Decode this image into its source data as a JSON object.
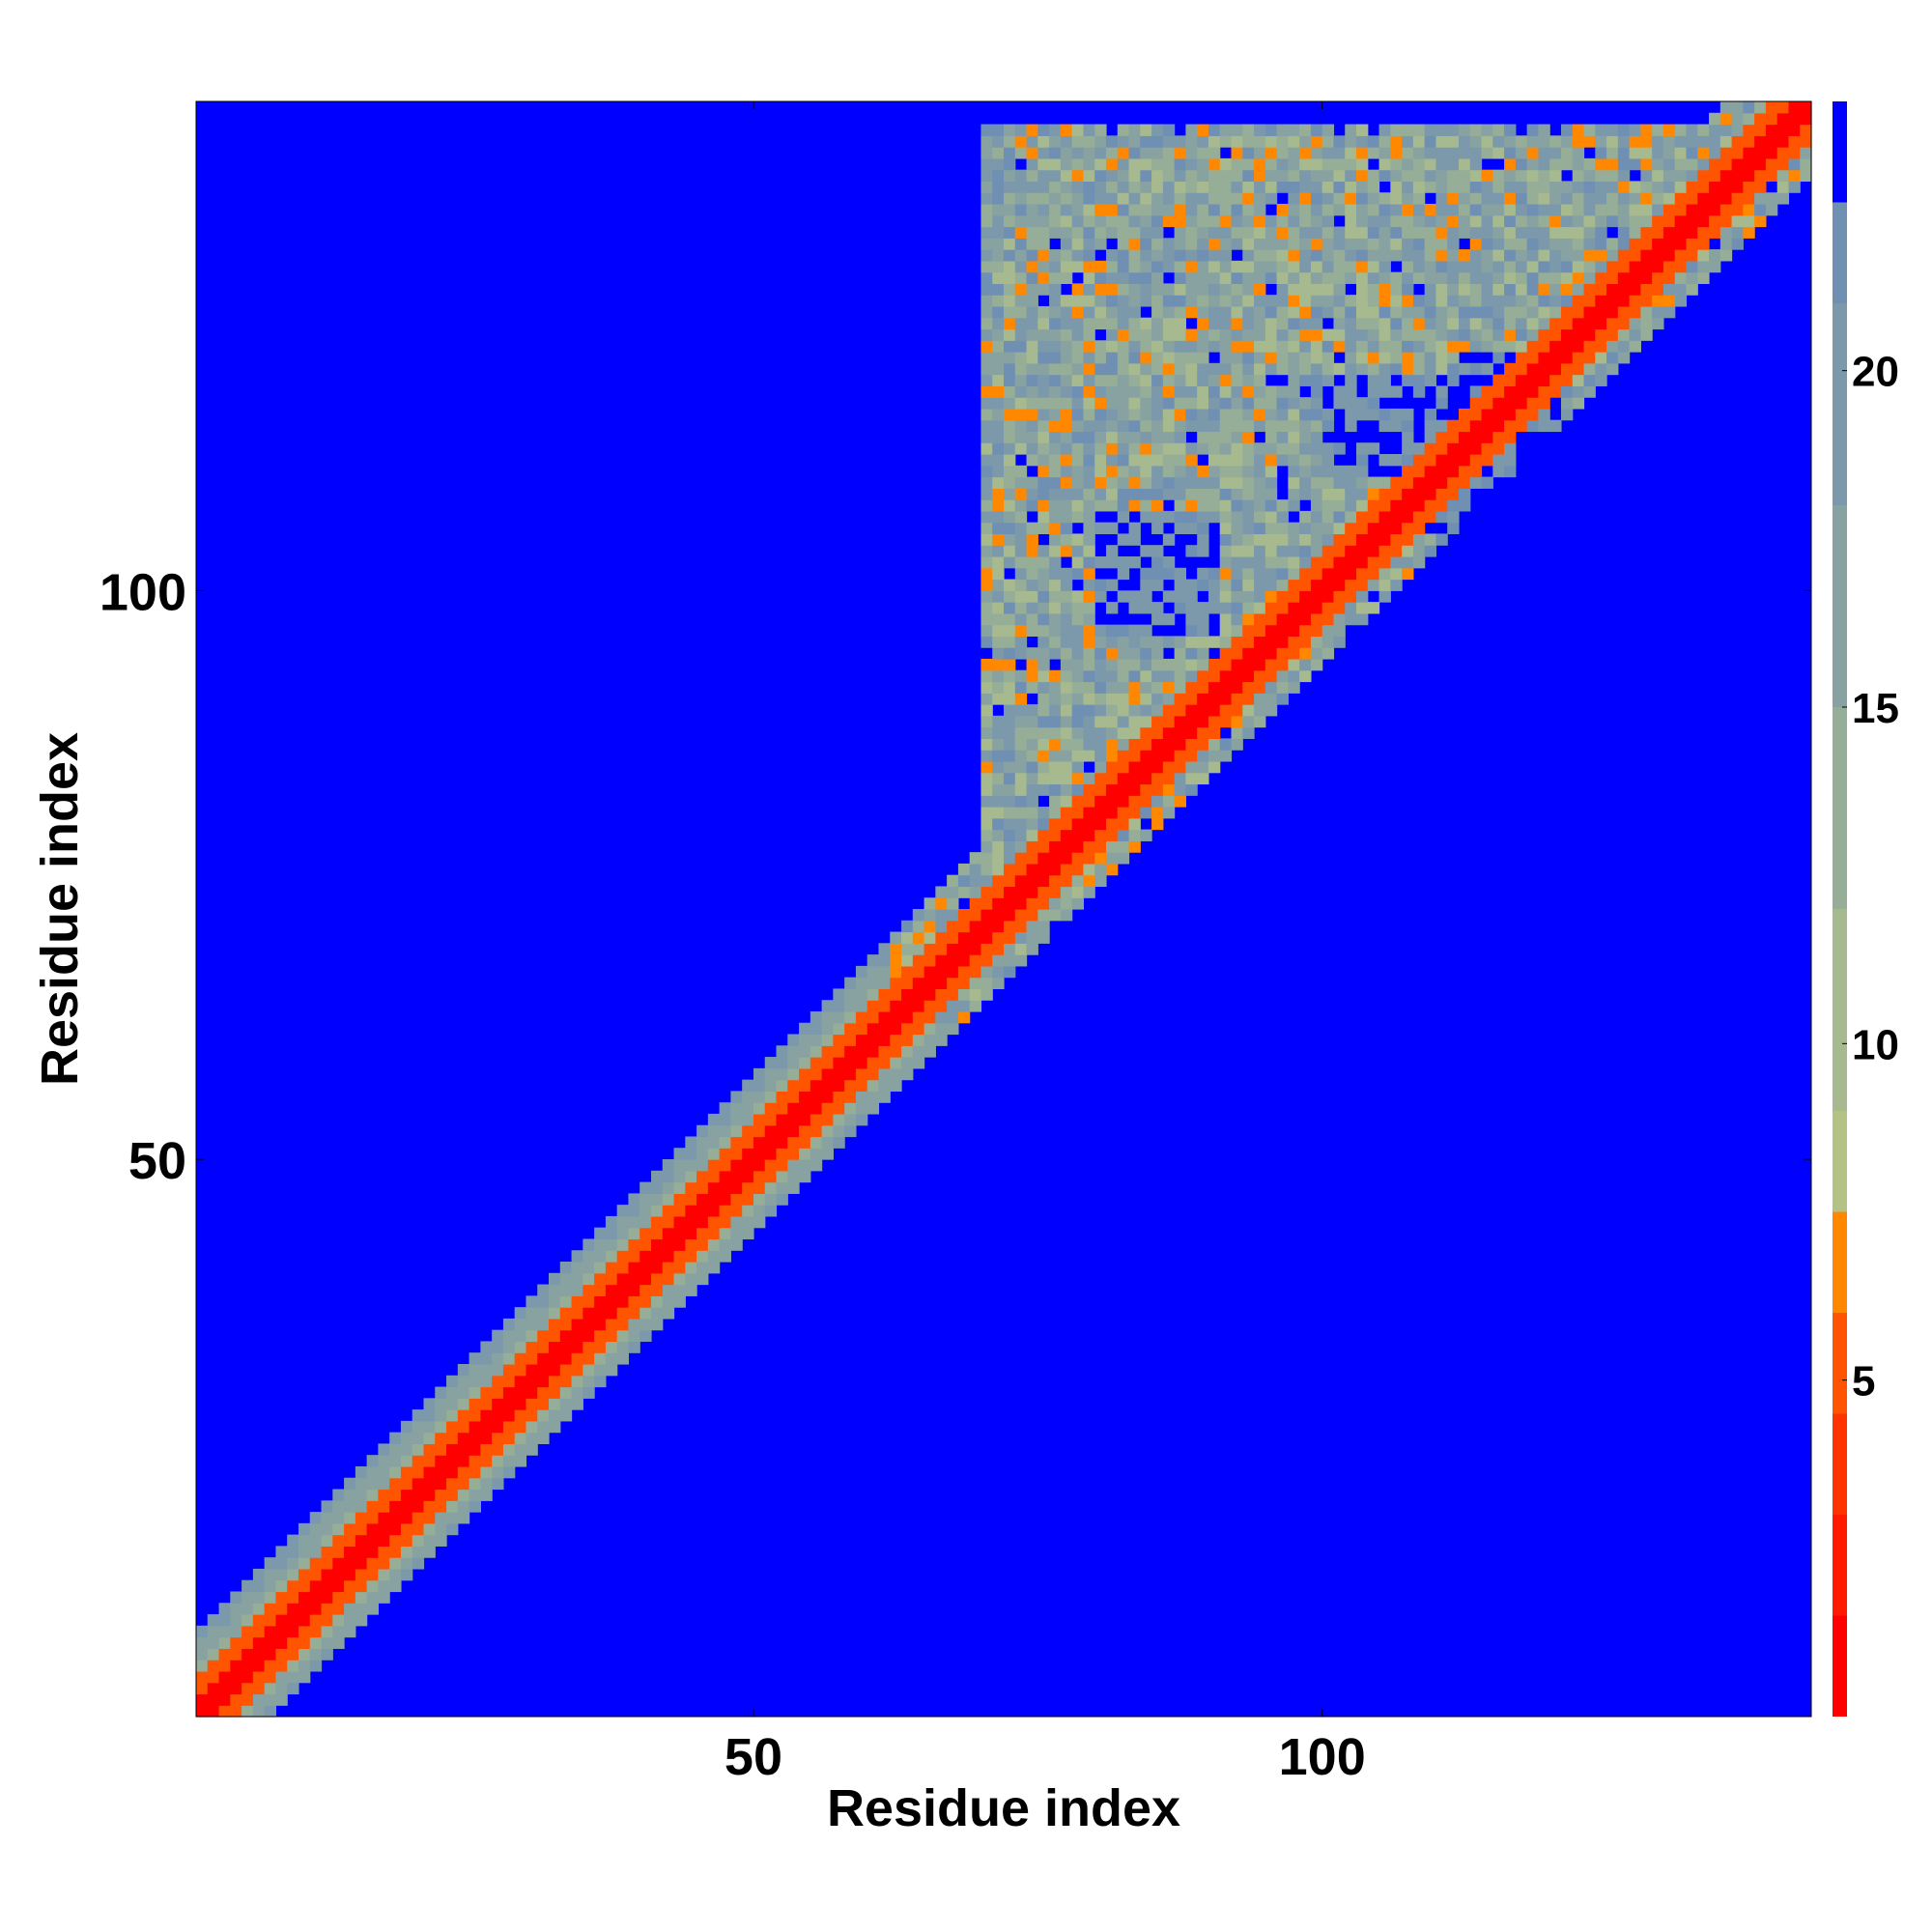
{
  "chart_data": {
    "type": "heatmap",
    "title": "",
    "xlabel": "Residue index",
    "ylabel": "Residue index",
    "xlim": [
      1,
      142
    ],
    "ylim": [
      1,
      142
    ],
    "x_ticks": [
      50,
      100
    ],
    "y_ticks": [
      50,
      100
    ],
    "colorbar": {
      "min": 0,
      "max": 24,
      "ticks": [
        5,
        10,
        15,
        20
      ],
      "bands": [
        {
          "from": 0,
          "to": 1.5,
          "color": "#ff0000"
        },
        {
          "from": 1.5,
          "to": 3,
          "color": "#ff1a00"
        },
        {
          "from": 3,
          "to": 4.5,
          "color": "#ff3300"
        },
        {
          "from": 4.5,
          "to": 6,
          "color": "#ff5500"
        },
        {
          "from": 6,
          "to": 7.5,
          "color": "#ff8800"
        },
        {
          "from": 7.5,
          "to": 9,
          "color": "#b5c285"
        },
        {
          "from": 9,
          "to": 12,
          "color": "#a7ba8f"
        },
        {
          "from": 12,
          "to": 15,
          "color": "#96ad97"
        },
        {
          "from": 15,
          "to": 18,
          "color": "#88a2a2"
        },
        {
          "from": 18,
          "to": 21,
          "color": "#7c99ab"
        },
        {
          "from": 21,
          "to": 22.5,
          "color": "#6f8fb3"
        },
        {
          "from": 22.5,
          "to": 24,
          "color": "#0000ff"
        }
      ]
    },
    "background_color": "#0000ff",
    "description_regions": {
      "diagonal": "distance ~0-4 along x=y",
      "compact_domain": [
        70,
        142
      ]
    }
  }
}
